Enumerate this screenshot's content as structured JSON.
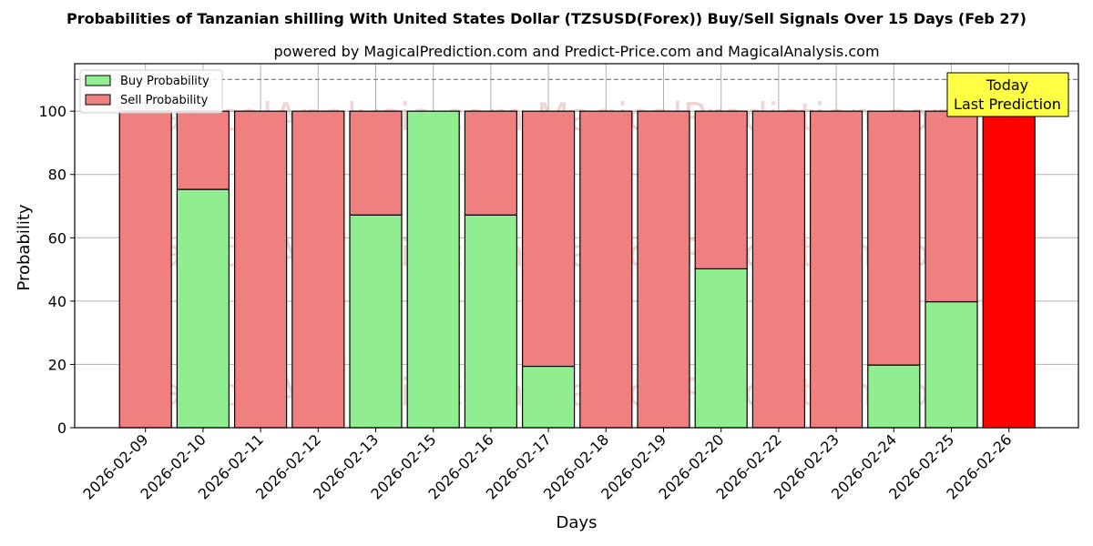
{
  "chart_data": {
    "type": "bar",
    "stacked": true,
    "title": "Probabilities of Tanzanian shilling With United States Dollar (TZSUSD(Forex)) Buy/Sell Signals Over 15 Days (Feb 27)",
    "subtitle": "powered by MagicalPrediction.com and Predict-Price.com and MagicalAnalysis.com",
    "xlabel": "Days",
    "ylabel": "Probability",
    "ylim": [
      0,
      115
    ],
    "yticks": [
      0,
      20,
      40,
      60,
      80,
      100
    ],
    "reference_line": 110,
    "grid": true,
    "legend_position": "top-left",
    "categories": [
      "2026-02-09",
      "2026-02-10",
      "2026-02-11",
      "2026-02-12",
      "2026-02-13",
      "2026-02-15",
      "2026-02-16",
      "2026-02-17",
      "2026-02-18",
      "2026-02-19",
      "2026-02-20",
      "2026-02-22",
      "2026-02-23",
      "2026-02-24",
      "2026-02-25",
      "2026-02-26"
    ],
    "series": [
      {
        "name": "Buy Probability",
        "color": "#90ee90",
        "values": [
          0,
          75.3,
          0,
          0,
          67.2,
          100,
          67.2,
          19.4,
          0,
          0,
          50.2,
          0,
          0,
          19.8,
          39.8,
          0
        ]
      },
      {
        "name": "Sell Probability",
        "color": "#f08080",
        "values": [
          100,
          24.7,
          100,
          100,
          32.8,
          0,
          32.8,
          80.6,
          100,
          100,
          49.8,
          100,
          100,
          80.2,
          60.2,
          100
        ]
      }
    ],
    "highlight": {
      "index": 15,
      "color": "#ff0000"
    },
    "annotation": {
      "lines": [
        "Today",
        "Last Prediction"
      ],
      "color": "#ffff44"
    },
    "watermark": "MagicalAnalysis.com          MagicalPrediction.com"
  }
}
